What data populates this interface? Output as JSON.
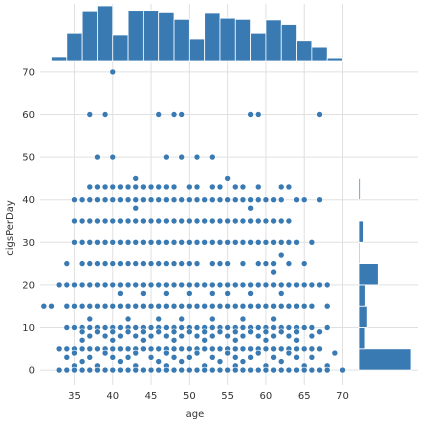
{
  "chart_data": {
    "type": "scatter",
    "title": "",
    "xlabel": "age",
    "ylabel": "cigsPerDay",
    "xlim": [
      30.5,
      71.5
    ],
    "ylim": [
      -3.5,
      73.5
    ],
    "xticks": [
      35,
      40,
      45,
      50,
      55,
      60,
      65,
      70
    ],
    "yticks": [
      0,
      10,
      20,
      30,
      40,
      50,
      60,
      70
    ],
    "xtick_labels": [
      "35",
      "40",
      "45",
      "50",
      "55",
      "60",
      "65",
      "70"
    ],
    "ytick_labels": [
      "0",
      "10",
      "20",
      "30",
      "40",
      "50",
      "60",
      "70"
    ],
    "grid": true,
    "colors": {
      "marker": "#3a7ab3",
      "marker_edge": "#ffffff",
      "bar": "#3a7ab3",
      "grid": "#e0e0e0"
    },
    "marginal_x_histogram": {
      "bin_edges": [
        32,
        34,
        36,
        38,
        40,
        42,
        44,
        46,
        48,
        50,
        52,
        54,
        56,
        58,
        60,
        62,
        64,
        66,
        68,
        70
      ],
      "counts": [
        7,
        48,
        86,
        95,
        45,
        87,
        87,
        84,
        72,
        38,
        83,
        74,
        72,
        48,
        71,
        63,
        35,
        24,
        5
      ]
    },
    "marginal_y_histogram": {
      "bin_edges": [
        0,
        5,
        10,
        15,
        20,
        25,
        30,
        35,
        40,
        45,
        50,
        55,
        60,
        65,
        70
      ],
      "counts": [
        140,
        16,
        22,
        17,
        52,
        3,
        12,
        1,
        4,
        0,
        0,
        0,
        0,
        0,
        0
      ]
    },
    "points": [
      [
        40,
        70
      ],
      [
        37,
        60
      ],
      [
        39,
        60
      ],
      [
        46,
        60
      ],
      [
        48,
        60
      ],
      [
        49,
        60
      ],
      [
        58,
        60
      ],
      [
        59,
        60
      ],
      [
        67,
        60
      ],
      [
        38,
        50
      ],
      [
        40,
        50
      ],
      [
        47,
        50
      ],
      [
        49,
        50
      ],
      [
        51,
        50
      ],
      [
        53,
        50
      ],
      [
        37,
        43
      ],
      [
        38,
        43
      ],
      [
        39,
        43
      ],
      [
        40,
        43
      ],
      [
        41,
        43
      ],
      [
        42,
        43
      ],
      [
        43,
        43
      ],
      [
        44,
        43
      ],
      [
        45,
        43
      ],
      [
        46,
        43
      ],
      [
        47,
        43
      ],
      [
        48,
        43
      ],
      [
        50,
        43
      ],
      [
        51,
        43
      ],
      [
        53,
        43
      ],
      [
        54,
        43
      ],
      [
        56,
        43
      ],
      [
        57,
        43
      ],
      [
        59,
        43
      ],
      [
        62,
        43
      ],
      [
        63,
        43
      ],
      [
        43,
        45
      ],
      [
        55,
        45
      ],
      [
        35,
        40
      ],
      [
        36,
        40
      ],
      [
        37,
        40
      ],
      [
        38,
        40
      ],
      [
        39,
        40
      ],
      [
        40,
        40
      ],
      [
        41,
        40
      ],
      [
        42,
        40
      ],
      [
        43,
        40
      ],
      [
        44,
        40
      ],
      [
        45,
        40
      ],
      [
        46,
        40
      ],
      [
        47,
        40
      ],
      [
        48,
        40
      ],
      [
        49,
        40
      ],
      [
        50,
        40
      ],
      [
        51,
        40
      ],
      [
        52,
        40
      ],
      [
        53,
        40
      ],
      [
        54,
        40
      ],
      [
        55,
        40
      ],
      [
        56,
        40
      ],
      [
        57,
        40
      ],
      [
        58,
        40
      ],
      [
        59,
        40
      ],
      [
        60,
        40
      ],
      [
        61,
        40
      ],
      [
        62,
        40
      ],
      [
        64,
        40
      ],
      [
        65,
        40
      ],
      [
        67,
        40
      ],
      [
        43,
        38
      ],
      [
        58,
        38
      ],
      [
        35,
        35
      ],
      [
        36,
        35
      ],
      [
        37,
        35
      ],
      [
        38,
        35
      ],
      [
        39,
        35
      ],
      [
        40,
        35
      ],
      [
        41,
        35
      ],
      [
        42,
        35
      ],
      [
        43,
        35
      ],
      [
        44,
        35
      ],
      [
        45,
        35
      ],
      [
        46,
        35
      ],
      [
        47,
        35
      ],
      [
        48,
        35
      ],
      [
        49,
        35
      ],
      [
        50,
        35
      ],
      [
        51,
        35
      ],
      [
        52,
        35
      ],
      [
        53,
        35
      ],
      [
        54,
        35
      ],
      [
        55,
        35
      ],
      [
        56,
        35
      ],
      [
        57,
        35
      ],
      [
        58,
        35
      ],
      [
        59,
        35
      ],
      [
        60,
        35
      ],
      [
        61,
        35
      ],
      [
        62,
        35
      ],
      [
        63,
        35
      ],
      [
        35,
        30
      ],
      [
        36,
        30
      ],
      [
        37,
        30
      ],
      [
        38,
        30
      ],
      [
        39,
        30
      ],
      [
        40,
        30
      ],
      [
        41,
        30
      ],
      [
        42,
        30
      ],
      [
        43,
        30
      ],
      [
        44,
        30
      ],
      [
        45,
        30
      ],
      [
        46,
        30
      ],
      [
        47,
        30
      ],
      [
        48,
        30
      ],
      [
        49,
        30
      ],
      [
        50,
        30
      ],
      [
        51,
        30
      ],
      [
        52,
        30
      ],
      [
        53,
        30
      ],
      [
        54,
        30
      ],
      [
        55,
        30
      ],
      [
        56,
        30
      ],
      [
        57,
        30
      ],
      [
        58,
        30
      ],
      [
        59,
        30
      ],
      [
        60,
        30
      ],
      [
        61,
        30
      ],
      [
        62,
        30
      ],
      [
        63,
        30
      ],
      [
        64,
        30
      ],
      [
        66,
        30
      ],
      [
        62,
        27
      ],
      [
        34,
        25
      ],
      [
        36,
        25
      ],
      [
        37,
        25
      ],
      [
        38,
        25
      ],
      [
        39,
        25
      ],
      [
        40,
        25
      ],
      [
        41,
        25
      ],
      [
        42,
        25
      ],
      [
        43,
        25
      ],
      [
        44,
        25
      ],
      [
        45,
        25
      ],
      [
        46,
        25
      ],
      [
        47,
        25
      ],
      [
        48,
        25
      ],
      [
        49,
        25
      ],
      [
        50,
        25
      ],
      [
        51,
        25
      ],
      [
        53,
        25
      ],
      [
        54,
        25
      ],
      [
        55,
        25
      ],
      [
        57,
        25
      ],
      [
        59,
        25
      ],
      [
        60,
        25
      ],
      [
        61,
        25
      ],
      [
        63,
        25
      ],
      [
        65,
        25
      ],
      [
        61,
        23
      ],
      [
        33,
        20
      ],
      [
        34,
        20
      ],
      [
        35,
        20
      ],
      [
        36,
        20
      ],
      [
        37,
        20
      ],
      [
        38,
        20
      ],
      [
        39,
        20
      ],
      [
        40,
        20
      ],
      [
        41,
        20
      ],
      [
        42,
        20
      ],
      [
        43,
        20
      ],
      [
        44,
        20
      ],
      [
        45,
        20
      ],
      [
        46,
        20
      ],
      [
        47,
        20
      ],
      [
        48,
        20
      ],
      [
        49,
        20
      ],
      [
        50,
        20
      ],
      [
        51,
        20
      ],
      [
        52,
        20
      ],
      [
        53,
        20
      ],
      [
        54,
        20
      ],
      [
        55,
        20
      ],
      [
        56,
        20
      ],
      [
        57,
        20
      ],
      [
        58,
        20
      ],
      [
        59,
        20
      ],
      [
        60,
        20
      ],
      [
        61,
        20
      ],
      [
        62,
        20
      ],
      [
        63,
        20
      ],
      [
        64,
        20
      ],
      [
        65,
        20
      ],
      [
        66,
        20
      ],
      [
        67,
        20
      ],
      [
        68,
        20
      ],
      [
        41,
        18
      ],
      [
        44,
        18
      ],
      [
        47,
        18
      ],
      [
        50,
        18
      ],
      [
        53,
        18
      ],
      [
        55,
        18
      ],
      [
        58,
        18
      ],
      [
        62,
        18
      ],
      [
        31,
        15
      ],
      [
        32,
        15
      ],
      [
        34,
        15
      ],
      [
        35,
        15
      ],
      [
        36,
        15
      ],
      [
        37,
        15
      ],
      [
        38,
        15
      ],
      [
        39,
        15
      ],
      [
        40,
        15
      ],
      [
        41,
        15
      ],
      [
        42,
        15
      ],
      [
        43,
        15
      ],
      [
        44,
        15
      ],
      [
        45,
        15
      ],
      [
        46,
        15
      ],
      [
        47,
        15
      ],
      [
        48,
        15
      ],
      [
        49,
        15
      ],
      [
        50,
        15
      ],
      [
        51,
        15
      ],
      [
        52,
        15
      ],
      [
        53,
        15
      ],
      [
        54,
        15
      ],
      [
        55,
        15
      ],
      [
        56,
        15
      ],
      [
        57,
        15
      ],
      [
        58,
        15
      ],
      [
        59,
        15
      ],
      [
        60,
        15
      ],
      [
        61,
        15
      ],
      [
        62,
        15
      ],
      [
        63,
        15
      ],
      [
        64,
        15
      ],
      [
        65,
        15
      ],
      [
        66,
        15
      ],
      [
        68,
        15
      ],
      [
        37,
        12
      ],
      [
        42,
        12
      ],
      [
        46,
        12
      ],
      [
        49,
        12
      ],
      [
        53,
        12
      ],
      [
        57,
        12
      ],
      [
        61,
        12
      ],
      [
        34,
        10
      ],
      [
        35,
        10
      ],
      [
        36,
        10
      ],
      [
        37,
        10
      ],
      [
        38,
        10
      ],
      [
        39,
        10
      ],
      [
        40,
        10
      ],
      [
        41,
        10
      ],
      [
        42,
        10
      ],
      [
        43,
        10
      ],
      [
        44,
        10
      ],
      [
        45,
        10
      ],
      [
        46,
        10
      ],
      [
        47,
        10
      ],
      [
        48,
        10
      ],
      [
        49,
        10
      ],
      [
        50,
        10
      ],
      [
        51,
        10
      ],
      [
        52,
        10
      ],
      [
        53,
        10
      ],
      [
        54,
        10
      ],
      [
        55,
        10
      ],
      [
        56,
        10
      ],
      [
        57,
        10
      ],
      [
        58,
        10
      ],
      [
        59,
        10
      ],
      [
        60,
        10
      ],
      [
        61,
        10
      ],
      [
        62,
        10
      ],
      [
        63,
        10
      ],
      [
        64,
        10
      ],
      [
        65,
        10
      ],
      [
        66,
        10
      ],
      [
        68,
        10
      ],
      [
        36,
        9
      ],
      [
        38,
        9
      ],
      [
        40,
        9
      ],
      [
        42,
        9
      ],
      [
        44,
        9
      ],
      [
        46,
        9
      ],
      [
        48,
        9
      ],
      [
        50,
        9
      ],
      [
        52,
        9
      ],
      [
        54,
        9
      ],
      [
        56,
        9
      ],
      [
        58,
        9
      ],
      [
        60,
        9
      ],
      [
        62,
        9
      ],
      [
        64,
        9
      ],
      [
        67,
        9
      ],
      [
        37,
        8
      ],
      [
        39,
        8
      ],
      [
        41,
        8
      ],
      [
        43,
        8
      ],
      [
        45,
        8
      ],
      [
        47,
        8
      ],
      [
        49,
        8
      ],
      [
        51,
        8
      ],
      [
        53,
        8
      ],
      [
        55,
        8
      ],
      [
        57,
        8
      ],
      [
        59,
        8
      ],
      [
        61,
        8
      ],
      [
        63,
        8
      ],
      [
        66,
        8
      ],
      [
        36,
        7
      ],
      [
        40,
        7
      ],
      [
        44,
        7
      ],
      [
        48,
        7
      ],
      [
        52,
        7
      ],
      [
        56,
        7
      ],
      [
        60,
        7
      ],
      [
        64,
        7
      ],
      [
        33,
        5
      ],
      [
        34,
        5
      ],
      [
        35,
        5
      ],
      [
        36,
        5
      ],
      [
        37,
        5
      ],
      [
        38,
        5
      ],
      [
        39,
        5
      ],
      [
        40,
        5
      ],
      [
        41,
        5
      ],
      [
        42,
        5
      ],
      [
        43,
        5
      ],
      [
        44,
        5
      ],
      [
        45,
        5
      ],
      [
        46,
        5
      ],
      [
        47,
        5
      ],
      [
        48,
        5
      ],
      [
        49,
        5
      ],
      [
        50,
        5
      ],
      [
        51,
        5
      ],
      [
        52,
        5
      ],
      [
        53,
        5
      ],
      [
        54,
        5
      ],
      [
        55,
        5
      ],
      [
        56,
        5
      ],
      [
        57,
        5
      ],
      [
        58,
        5
      ],
      [
        59,
        5
      ],
      [
        60,
        5
      ],
      [
        61,
        5
      ],
      [
        62,
        5
      ],
      [
        63,
        5
      ],
      [
        64,
        5
      ],
      [
        65,
        5
      ],
      [
        66,
        5
      ],
      [
        67,
        5
      ],
      [
        35,
        4
      ],
      [
        39,
        4
      ],
      [
        43,
        4
      ],
      [
        47,
        4
      ],
      [
        51,
        4
      ],
      [
        55,
        4
      ],
      [
        59,
        4
      ],
      [
        63,
        4
      ],
      [
        69,
        4
      ],
      [
        34,
        3
      ],
      [
        37,
        3
      ],
      [
        40,
        3
      ],
      [
        42,
        3
      ],
      [
        45,
        3
      ],
      [
        48,
        3
      ],
      [
        50,
        3
      ],
      [
        53,
        3
      ],
      [
        56,
        3
      ],
      [
        58,
        3
      ],
      [
        61,
        3
      ],
      [
        64,
        3
      ],
      [
        66,
        3
      ],
      [
        36,
        2
      ],
      [
        41,
        2
      ],
      [
        46,
        2
      ],
      [
        49,
        2
      ],
      [
        54,
        2
      ],
      [
        57,
        2
      ],
      [
        62,
        2
      ],
      [
        35,
        1
      ],
      [
        38,
        1
      ],
      [
        43,
        1
      ],
      [
        47,
        1
      ],
      [
        52,
        1
      ],
      [
        56,
        1
      ],
      [
        60,
        1
      ],
      [
        65,
        1
      ],
      [
        68,
        1
      ],
      [
        33,
        0
      ],
      [
        34,
        0
      ],
      [
        35,
        0
      ],
      [
        36,
        0
      ],
      [
        37,
        0
      ],
      [
        38,
        0
      ],
      [
        39,
        0
      ],
      [
        40,
        0
      ],
      [
        41,
        0
      ],
      [
        42,
        0
      ],
      [
        43,
        0
      ],
      [
        44,
        0
      ],
      [
        45,
        0
      ],
      [
        46,
        0
      ],
      [
        47,
        0
      ],
      [
        48,
        0
      ],
      [
        49,
        0
      ],
      [
        50,
        0
      ],
      [
        51,
        0
      ],
      [
        52,
        0
      ],
      [
        53,
        0
      ],
      [
        54,
        0
      ],
      [
        55,
        0
      ],
      [
        56,
        0
      ],
      [
        57,
        0
      ],
      [
        58,
        0
      ],
      [
        59,
        0
      ],
      [
        60,
        0
      ],
      [
        61,
        0
      ],
      [
        62,
        0
      ],
      [
        63,
        0
      ],
      [
        64,
        0
      ],
      [
        65,
        0
      ],
      [
        66,
        0
      ],
      [
        67,
        0
      ],
      [
        68,
        0
      ],
      [
        70,
        0
      ]
    ]
  }
}
